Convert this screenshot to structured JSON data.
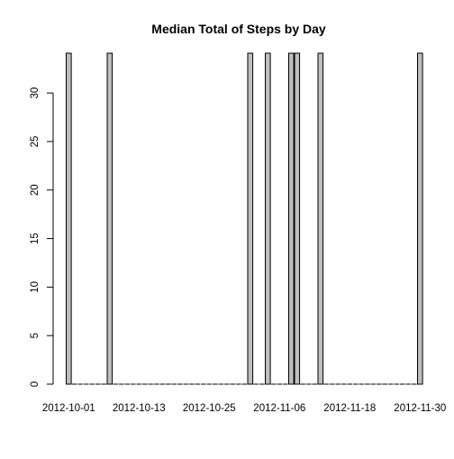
{
  "chart_data": {
    "type": "bar",
    "title": "Median Total of Steps by Day",
    "xlabel": "",
    "ylabel": "",
    "ylim": [
      0,
      34.1
    ],
    "yticks": [
      0,
      5,
      10,
      15,
      20,
      25,
      30
    ],
    "xtick_labels": [
      "2012-10-01",
      "2012-10-13",
      "2012-10-25",
      "2012-11-06",
      "2012-11-18",
      "2012-11-30"
    ],
    "x_axis_visible": false,
    "grid": false,
    "bar_color": "#bebebe",
    "bar_edge_color": "#000000",
    "categories": [
      "2012-10-01",
      "2012-10-02",
      "2012-10-03",
      "2012-10-04",
      "2012-10-05",
      "2012-10-06",
      "2012-10-07",
      "2012-10-08",
      "2012-10-09",
      "2012-10-10",
      "2012-10-11",
      "2012-10-12",
      "2012-10-13",
      "2012-10-14",
      "2012-10-15",
      "2012-10-16",
      "2012-10-17",
      "2012-10-18",
      "2012-10-19",
      "2012-10-20",
      "2012-10-21",
      "2012-10-22",
      "2012-10-23",
      "2012-10-24",
      "2012-10-25",
      "2012-10-26",
      "2012-10-27",
      "2012-10-28",
      "2012-10-29",
      "2012-10-30",
      "2012-10-31",
      "2012-11-01",
      "2012-11-02",
      "2012-11-03",
      "2012-11-04",
      "2012-11-05",
      "2012-11-06",
      "2012-11-07",
      "2012-11-08",
      "2012-11-09",
      "2012-11-10",
      "2012-11-11",
      "2012-11-12",
      "2012-11-13",
      "2012-11-14",
      "2012-11-15",
      "2012-11-16",
      "2012-11-17",
      "2012-11-18",
      "2012-11-19",
      "2012-11-20",
      "2012-11-21",
      "2012-11-22",
      "2012-11-23",
      "2012-11-24",
      "2012-11-25",
      "2012-11-26",
      "2012-11-27",
      "2012-11-28",
      "2012-11-29",
      "2012-11-30"
    ],
    "values": [
      34.1,
      0,
      0,
      0,
      0,
      0,
      0,
      34.1,
      0,
      0,
      0,
      0,
      0,
      0,
      0,
      0,
      0,
      0,
      0,
      0,
      0,
      0,
      0,
      0,
      0,
      0,
      0,
      0,
      0,
      0,
      0,
      34.1,
      0,
      0,
      34.1,
      0,
      0,
      0,
      34.1,
      34.1,
      0,
      0,
      0,
      34.1,
      0,
      0,
      0,
      0,
      0,
      0,
      0,
      0,
      0,
      0,
      0,
      0,
      0,
      0,
      0,
      0,
      34.1
    ]
  }
}
